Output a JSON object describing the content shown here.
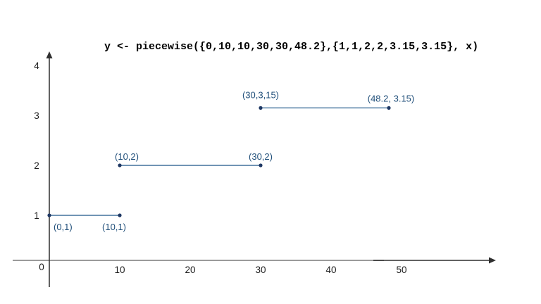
{
  "title": "y <- piecewise({0,10,10,30,30,48.2},{1,1,2,2,3.15,3.15}, x)",
  "chart_data": {
    "type": "line",
    "subtype": "piecewise-step-segments",
    "title": "y <- piecewise({0,10,10,30,30,48.2},{1,1,2,2,3.15,3.15}, x)",
    "xlabel": "",
    "ylabel": "",
    "xlim": [
      0,
      63
    ],
    "ylim": [
      0,
      4.2
    ],
    "grid": false,
    "legend": null,
    "x_ticks": [
      {
        "value": 10,
        "label": "10"
      },
      {
        "value": 20,
        "label": "20"
      },
      {
        "value": 30,
        "label": "30"
      },
      {
        "value": 40,
        "label": "40"
      },
      {
        "value": 50,
        "label": "50"
      }
    ],
    "y_ticks": [
      {
        "value": 1,
        "label": "1"
      },
      {
        "value": 2,
        "label": "2"
      },
      {
        "value": 3,
        "label": "3"
      },
      {
        "value": 4,
        "label": "4"
      }
    ],
    "origin_label": "0",
    "segments": [
      {
        "p1": {
          "x": 0,
          "y": 1,
          "label": "(0,1)",
          "anchor": "start",
          "dx": 6,
          "dy": 21
        },
        "p2": {
          "x": 10,
          "y": 1,
          "label": "(10,1)",
          "anchor": "middle",
          "dx": -8,
          "dy": 21
        }
      },
      {
        "p1": {
          "x": 10,
          "y": 2,
          "label": "(10,2)",
          "anchor": "middle",
          "dx": 10,
          "dy": -8
        },
        "p2": {
          "x": 30,
          "y": 2,
          "label": "(30,2)",
          "anchor": "middle",
          "dx": 0,
          "dy": -8
        }
      },
      {
        "p1": {
          "x": 30,
          "y": 3.15,
          "label": "(30,3,15)",
          "anchor": "middle",
          "dx": 0,
          "dy": -14
        },
        "p2": {
          "x": 48.2,
          "y": 3.15,
          "label": "(48.2, 3.15)",
          "anchor": "middle",
          "dx": 3,
          "dy": -9
        }
      }
    ],
    "colors": {
      "segment_line": "#41719c",
      "point_dot": "#1f3864",
      "point_label": "#1f4e79",
      "axis_gray": "#9b9b9b",
      "axis_dark": "#2f2f2f",
      "tick_label": "#1c1c1c",
      "title": "#000000",
      "background": "#ffffff"
    }
  }
}
